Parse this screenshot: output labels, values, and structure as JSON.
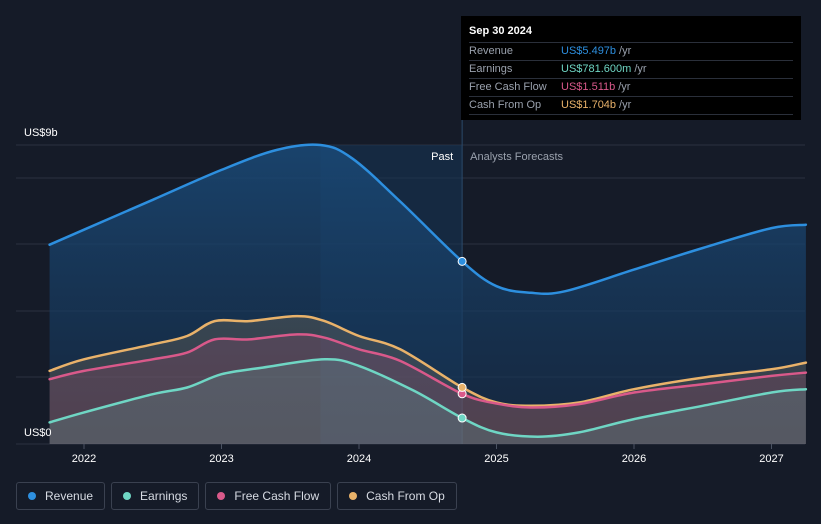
{
  "chart_data": {
    "type": "area",
    "y_axis_top_label": "US$9b",
    "y_axis_bottom_label": "US$0",
    "ylim": [
      0,
      9
    ],
    "x_ticks": [
      "2022",
      "2023",
      "2024",
      "2025",
      "2026",
      "2027"
    ],
    "past_label": "Past",
    "forecast_label": "Analysts Forecasts",
    "divider_x": 2024.75,
    "series": [
      {
        "name": "Revenue",
        "color": "#2d8fdf",
        "points": [
          [
            2021.75,
            6.0
          ],
          [
            2022.0,
            6.45
          ],
          [
            2022.5,
            7.35
          ],
          [
            2023.0,
            8.25
          ],
          [
            2023.4,
            8.85
          ],
          [
            2023.72,
            9.0
          ],
          [
            2023.95,
            8.6
          ],
          [
            2024.3,
            7.3
          ],
          [
            2024.75,
            5.497
          ],
          [
            2025.0,
            4.75
          ],
          [
            2025.25,
            4.55
          ],
          [
            2025.5,
            4.6
          ],
          [
            2026.0,
            5.25
          ],
          [
            2026.5,
            5.9
          ],
          [
            2027.0,
            6.5
          ],
          [
            2027.25,
            6.6
          ]
        ]
      },
      {
        "name": "Earnings",
        "color": "#6fd6c4",
        "points": [
          [
            2021.75,
            0.65
          ],
          [
            2022.0,
            0.95
          ],
          [
            2022.5,
            1.5
          ],
          [
            2022.75,
            1.7
          ],
          [
            2023.0,
            2.1
          ],
          [
            2023.3,
            2.3
          ],
          [
            2023.75,
            2.55
          ],
          [
            2024.0,
            2.35
          ],
          [
            2024.4,
            1.6
          ],
          [
            2024.75,
            0.7816
          ],
          [
            2025.0,
            0.35
          ],
          [
            2025.3,
            0.22
          ],
          [
            2025.6,
            0.35
          ],
          [
            2026.0,
            0.75
          ],
          [
            2026.5,
            1.15
          ],
          [
            2027.0,
            1.55
          ],
          [
            2027.25,
            1.65
          ]
        ]
      },
      {
        "name": "Free Cash Flow",
        "color": "#d9598a",
        "points": [
          [
            2021.75,
            1.95
          ],
          [
            2022.0,
            2.2
          ],
          [
            2022.5,
            2.55
          ],
          [
            2022.75,
            2.75
          ],
          [
            2022.95,
            3.15
          ],
          [
            2023.2,
            3.15
          ],
          [
            2023.55,
            3.3
          ],
          [
            2023.75,
            3.2
          ],
          [
            2024.0,
            2.85
          ],
          [
            2024.3,
            2.5
          ],
          [
            2024.75,
            1.511
          ],
          [
            2025.0,
            1.22
          ],
          [
            2025.25,
            1.1
          ],
          [
            2025.6,
            1.2
          ],
          [
            2026.0,
            1.55
          ],
          [
            2026.5,
            1.8
          ],
          [
            2027.0,
            2.05
          ],
          [
            2027.25,
            2.15
          ]
        ]
      },
      {
        "name": "Cash From Op",
        "color": "#e9b26a",
        "points": [
          [
            2021.75,
            2.2
          ],
          [
            2022.0,
            2.55
          ],
          [
            2022.5,
            3.0
          ],
          [
            2022.75,
            3.25
          ],
          [
            2022.95,
            3.7
          ],
          [
            2023.2,
            3.7
          ],
          [
            2023.55,
            3.85
          ],
          [
            2023.75,
            3.7
          ],
          [
            2024.0,
            3.25
          ],
          [
            2024.3,
            2.85
          ],
          [
            2024.75,
            1.704
          ],
          [
            2025.0,
            1.25
          ],
          [
            2025.25,
            1.15
          ],
          [
            2025.6,
            1.25
          ],
          [
            2026.0,
            1.65
          ],
          [
            2026.5,
            2.0
          ],
          [
            2027.0,
            2.25
          ],
          [
            2027.25,
            2.45
          ]
        ]
      }
    ],
    "highlighted": {
      "x": 2024.75,
      "values": [
        5.497,
        0.7816,
        1.511,
        1.704
      ]
    }
  },
  "tooltip": {
    "date": "Sep 30 2024",
    "rows": [
      {
        "label": "Revenue",
        "value": "US$5.497b",
        "unit": "/yr",
        "color": "#2d8fdf"
      },
      {
        "label": "Earnings",
        "value": "US$781.600m",
        "unit": "/yr",
        "color": "#6fd6c4"
      },
      {
        "label": "Free Cash Flow",
        "value": "US$1.511b",
        "unit": "/yr",
        "color": "#d9598a"
      },
      {
        "label": "Cash From Op",
        "value": "US$1.704b",
        "unit": "/yr",
        "color": "#e9b26a"
      }
    ]
  },
  "legend": [
    {
      "label": "Revenue",
      "color": "#2d8fdf"
    },
    {
      "label": "Earnings",
      "color": "#6fd6c4"
    },
    {
      "label": "Free Cash Flow",
      "color": "#d9598a"
    },
    {
      "label": "Cash From Op",
      "color": "#e9b26a"
    }
  ]
}
